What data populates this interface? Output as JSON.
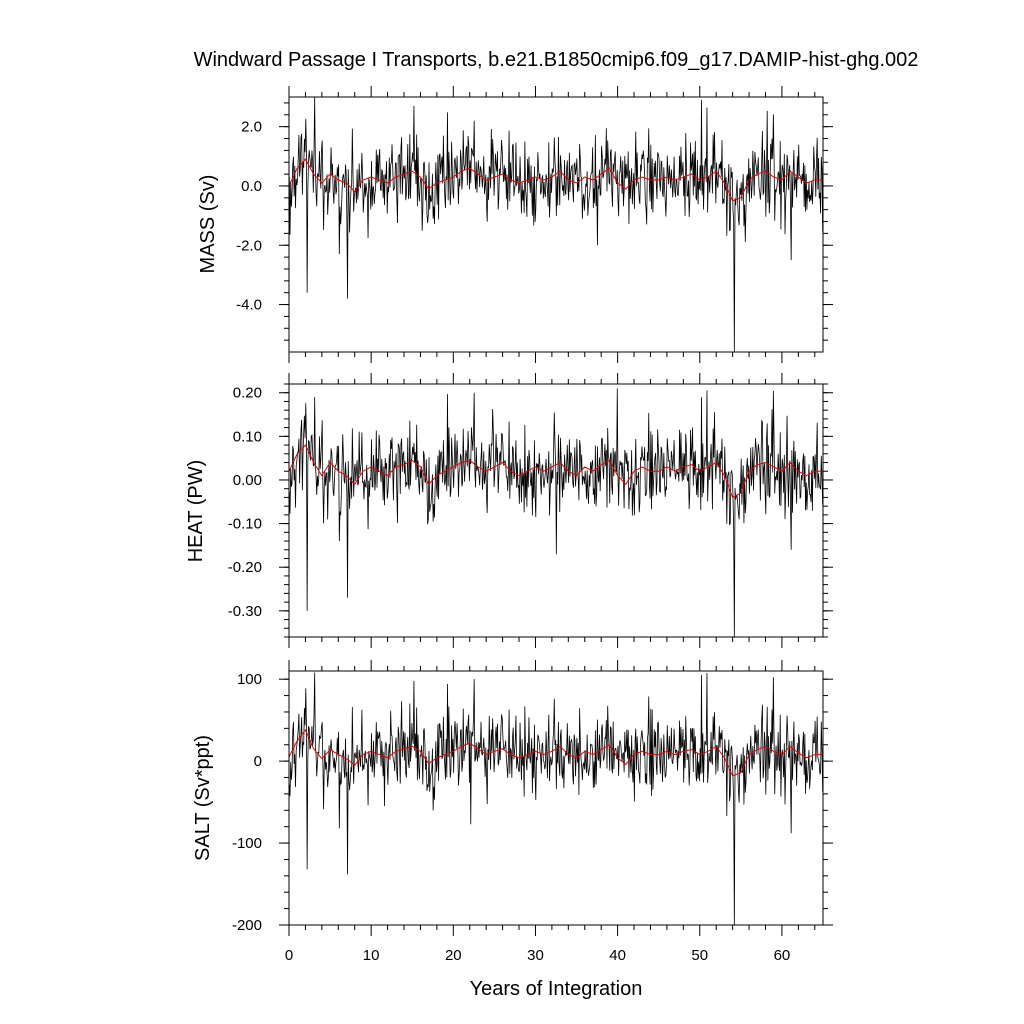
{
  "title": "Windward Passage I Transports, b.e21.B1850cmip6.f09_g17.DAMIP-hist-ghg.002",
  "chart_data": {
    "type": "line",
    "title": "Windward Passage I Transports, b.e21.B1850cmip6.f09_g17.DAMIP-hist-ghg.002",
    "xlabel": "Years of Integration",
    "xlim": [
      0,
      65
    ],
    "x_ticks": [
      0,
      10,
      20,
      30,
      40,
      50,
      60
    ],
    "x_tick_labels": [
      "0",
      "10",
      "20",
      "30",
      "40",
      "50",
      "60"
    ],
    "grid": false,
    "series_style": {
      "monthly_color": "#000000",
      "smoothed_color": "#e00000"
    },
    "panels": [
      {
        "name": "mass",
        "ylabel": "MASS (Sv)",
        "ylim": [
          -5.6,
          3.0
        ],
        "y_ticks": [
          2.0,
          0.0,
          -2.0,
          -4.0
        ],
        "y_tick_labels": [
          "2.0",
          "0.0",
          "-2.0",
          "-4.0"
        ],
        "minor_step": 0.4,
        "noise_sd": 0.8,
        "spikes": [
          {
            "x": 2.2,
            "y": -3.6
          },
          {
            "x": 3.1,
            "y": 3.0
          },
          {
            "x": 7.1,
            "y": -3.8
          },
          {
            "x": 6.1,
            "y": -2.3
          },
          {
            "x": 54.2,
            "y": -5.6
          },
          {
            "x": 15.2,
            "y": 2.7
          },
          {
            "x": 22.5,
            "y": 2.2
          },
          {
            "x": 50.2,
            "y": 2.9
          },
          {
            "x": 61.1,
            "y": -2.5
          },
          {
            "x": 37.5,
            "y": -2.0
          }
        ],
        "smooth": [
          [
            0,
            0.0
          ],
          [
            1,
            0.6
          ],
          [
            2,
            0.9
          ],
          [
            3,
            0.4
          ],
          [
            4,
            0.1
          ],
          [
            5,
            0.4
          ],
          [
            6,
            0.2
          ],
          [
            7,
            0.1
          ],
          [
            8,
            -0.2
          ],
          [
            9,
            0.2
          ],
          [
            10,
            0.3
          ],
          [
            11,
            0.2
          ],
          [
            12,
            0.1
          ],
          [
            13,
            0.3
          ],
          [
            14,
            0.4
          ],
          [
            15,
            0.5
          ],
          [
            16,
            0.3
          ],
          [
            17,
            -0.1
          ],
          [
            18,
            0.1
          ],
          [
            19,
            0.2
          ],
          [
            20,
            0.3
          ],
          [
            21,
            0.5
          ],
          [
            22,
            0.6
          ],
          [
            23,
            0.4
          ],
          [
            24,
            0.2
          ],
          [
            25,
            0.3
          ],
          [
            26,
            0.4
          ],
          [
            27,
            0.2
          ],
          [
            28,
            0.1
          ],
          [
            29,
            0.2
          ],
          [
            30,
            0.3
          ],
          [
            31,
            0.2
          ],
          [
            32,
            0.3
          ],
          [
            33,
            0.5
          ],
          [
            34,
            0.2
          ],
          [
            35,
            0.1
          ],
          [
            36,
            0.3
          ],
          [
            37,
            0.2
          ],
          [
            38,
            0.4
          ],
          [
            39,
            0.6
          ],
          [
            40,
            0.1
          ],
          [
            41,
            -0.1
          ],
          [
            42,
            0.2
          ],
          [
            43,
            0.3
          ],
          [
            44,
            0.2
          ],
          [
            45,
            0.2
          ],
          [
            46,
            0.3
          ],
          [
            47,
            0.2
          ],
          [
            48,
            0.3
          ],
          [
            49,
            0.4
          ],
          [
            50,
            0.2
          ],
          [
            51,
            0.3
          ],
          [
            52,
            0.5
          ],
          [
            53,
            0.1
          ],
          [
            54,
            -0.5
          ],
          [
            55,
            -0.4
          ],
          [
            56,
            0.2
          ],
          [
            57,
            0.4
          ],
          [
            58,
            0.5
          ],
          [
            59,
            0.3
          ],
          [
            60,
            0.2
          ],
          [
            61,
            0.5
          ],
          [
            62,
            0.3
          ],
          [
            63,
            0.1
          ],
          [
            64,
            0.2
          ],
          [
            65,
            0.2
          ]
        ]
      },
      {
        "name": "heat",
        "ylabel": "HEAT (PW)",
        "ylim": [
          -0.36,
          0.22
        ],
        "y_ticks": [
          0.2,
          0.1,
          0.0,
          -0.1,
          -0.2,
          -0.3
        ],
        "y_tick_labels": [
          "0.20",
          "0.10",
          "0.00",
          "-0.10",
          "-0.20",
          "-0.30"
        ],
        "minor_step": 0.02,
        "noise_sd": 0.055,
        "spikes": [
          {
            "x": 2.2,
            "y": -0.3
          },
          {
            "x": 3.1,
            "y": 0.19
          },
          {
            "x": 7.1,
            "y": -0.27
          },
          {
            "x": 6.1,
            "y": -0.14
          },
          {
            "x": 54.2,
            "y": -0.36
          },
          {
            "x": 22.5,
            "y": 0.2
          },
          {
            "x": 39.9,
            "y": 0.21
          },
          {
            "x": 50.2,
            "y": 0.19
          },
          {
            "x": 32.5,
            "y": -0.17
          },
          {
            "x": 61.1,
            "y": -0.16
          }
        ],
        "smooth": [
          [
            0,
            0.02
          ],
          [
            1,
            0.06
          ],
          [
            2,
            0.08
          ],
          [
            3,
            0.04
          ],
          [
            4,
            0.01
          ],
          [
            5,
            0.04
          ],
          [
            6,
            0.02
          ],
          [
            7,
            0.01
          ],
          [
            8,
            -0.01
          ],
          [
            9,
            0.02
          ],
          [
            10,
            0.03
          ],
          [
            11,
            0.02
          ],
          [
            12,
            0.01
          ],
          [
            13,
            0.03
          ],
          [
            14,
            0.035
          ],
          [
            15,
            0.045
          ],
          [
            16,
            0.03
          ],
          [
            17,
            -0.01
          ],
          [
            18,
            0.01
          ],
          [
            19,
            0.02
          ],
          [
            20,
            0.03
          ],
          [
            21,
            0.04
          ],
          [
            22,
            0.045
          ],
          [
            23,
            0.03
          ],
          [
            24,
            0.02
          ],
          [
            25,
            0.03
          ],
          [
            26,
            0.04
          ],
          [
            27,
            0.02
          ],
          [
            28,
            0.01
          ],
          [
            29,
            0.02
          ],
          [
            30,
            0.03
          ],
          [
            31,
            0.02
          ],
          [
            32,
            0.03
          ],
          [
            33,
            0.04
          ],
          [
            34,
            0.02
          ],
          [
            35,
            0.01
          ],
          [
            36,
            0.03
          ],
          [
            37,
            0.02
          ],
          [
            38,
            0.035
          ],
          [
            39,
            0.045
          ],
          [
            40,
            0.01
          ],
          [
            41,
            -0.01
          ],
          [
            42,
            0.02
          ],
          [
            43,
            0.03
          ],
          [
            44,
            0.02
          ],
          [
            45,
            0.02
          ],
          [
            46,
            0.03
          ],
          [
            47,
            0.02
          ],
          [
            48,
            0.03
          ],
          [
            49,
            0.035
          ],
          [
            50,
            0.02
          ],
          [
            51,
            0.03
          ],
          [
            52,
            0.04
          ],
          [
            53,
            0.01
          ],
          [
            54,
            -0.04
          ],
          [
            55,
            -0.03
          ],
          [
            56,
            0.02
          ],
          [
            57,
            0.035
          ],
          [
            58,
            0.04
          ],
          [
            59,
            0.03
          ],
          [
            60,
            0.02
          ],
          [
            61,
            0.04
          ],
          [
            62,
            0.02
          ],
          [
            63,
            0.01
          ],
          [
            64,
            0.02
          ],
          [
            65,
            0.02
          ]
        ]
      },
      {
        "name": "salt",
        "ylabel": "SALT (Sv*ppt)",
        "ylim": [
          -200,
          110
        ],
        "y_ticks": [
          100,
          0,
          -100,
          -200
        ],
        "y_tick_labels": [
          "100",
          "0",
          "-100",
          "-200"
        ],
        "minor_step": 20,
        "noise_sd": 28,
        "spikes": [
          {
            "x": 2.2,
            "y": -132
          },
          {
            "x": 3.1,
            "y": 108
          },
          {
            "x": 7.1,
            "y": -138
          },
          {
            "x": 6.1,
            "y": -82
          },
          {
            "x": 54.2,
            "y": -200
          },
          {
            "x": 15.2,
            "y": 98
          },
          {
            "x": 22.5,
            "y": 100
          },
          {
            "x": 50.2,
            "y": 105
          },
          {
            "x": 61.1,
            "y": -88
          },
          {
            "x": 22.1,
            "y": -77
          }
        ],
        "smooth": [
          [
            0,
            5
          ],
          [
            1,
            25
          ],
          [
            2,
            38
          ],
          [
            3,
            15
          ],
          [
            4,
            3
          ],
          [
            5,
            14
          ],
          [
            6,
            8
          ],
          [
            7,
            3
          ],
          [
            8,
            -5
          ],
          [
            9,
            8
          ],
          [
            10,
            12
          ],
          [
            11,
            8
          ],
          [
            12,
            4
          ],
          [
            13,
            12
          ],
          [
            14,
            15
          ],
          [
            15,
            18
          ],
          [
            16,
            12
          ],
          [
            17,
            -3
          ],
          [
            18,
            4
          ],
          [
            19,
            8
          ],
          [
            20,
            12
          ],
          [
            21,
            18
          ],
          [
            22,
            22
          ],
          [
            23,
            15
          ],
          [
            24,
            8
          ],
          [
            25,
            12
          ],
          [
            26,
            15
          ],
          [
            27,
            8
          ],
          [
            28,
            4
          ],
          [
            29,
            8
          ],
          [
            30,
            12
          ],
          [
            31,
            8
          ],
          [
            32,
            12
          ],
          [
            33,
            18
          ],
          [
            34,
            8
          ],
          [
            35,
            4
          ],
          [
            36,
            12
          ],
          [
            37,
            8
          ],
          [
            38,
            14
          ],
          [
            39,
            20
          ],
          [
            40,
            4
          ],
          [
            41,
            -4
          ],
          [
            42,
            8
          ],
          [
            43,
            12
          ],
          [
            44,
            8
          ],
          [
            45,
            8
          ],
          [
            46,
            12
          ],
          [
            47,
            8
          ],
          [
            48,
            12
          ],
          [
            49,
            14
          ],
          [
            50,
            8
          ],
          [
            51,
            12
          ],
          [
            52,
            18
          ],
          [
            53,
            4
          ],
          [
            54,
            -18
          ],
          [
            55,
            -14
          ],
          [
            56,
            8
          ],
          [
            57,
            14
          ],
          [
            58,
            18
          ],
          [
            59,
            12
          ],
          [
            60,
            8
          ],
          [
            61,
            18
          ],
          [
            62,
            10
          ],
          [
            63,
            4
          ],
          [
            64,
            8
          ],
          [
            65,
            8
          ]
        ]
      }
    ]
  }
}
